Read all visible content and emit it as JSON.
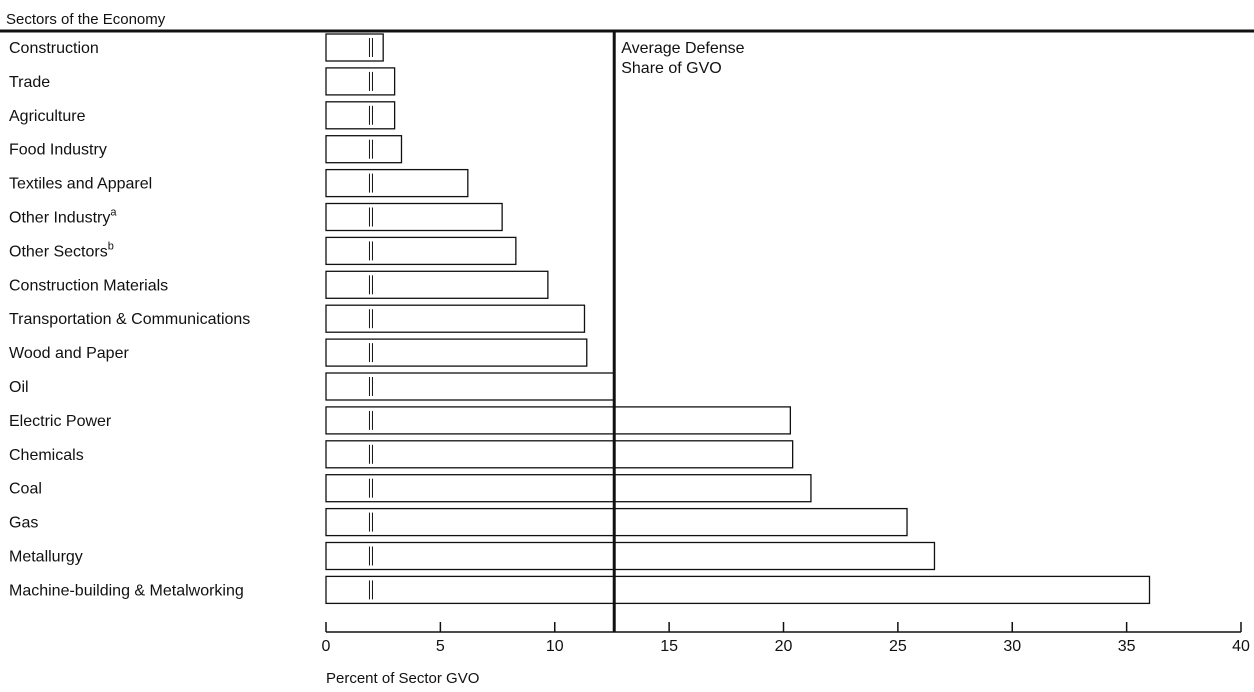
{
  "chart_data": {
    "type": "bar",
    "orientation": "horizontal",
    "header": "Sectors of the Economy",
    "xlabel": "Percent of Sector GVO",
    "xlim": [
      0,
      40
    ],
    "xticks": [
      0,
      5,
      10,
      15,
      20,
      25,
      30,
      35,
      40
    ],
    "grid": false,
    "categories": [
      {
        "label": "Construction",
        "sup": ""
      },
      {
        "label": "Trade",
        "sup": ""
      },
      {
        "label": "Agriculture",
        "sup": ""
      },
      {
        "label": "Food Industry",
        "sup": ""
      },
      {
        "label": "Textiles and Apparel",
        "sup": ""
      },
      {
        "label": "Other Industry",
        "sup": "a"
      },
      {
        "label": "Other Sectors",
        "sup": "b"
      },
      {
        "label": "Construction Materials",
        "sup": ""
      },
      {
        "label": "Transportation & Communications",
        "sup": ""
      },
      {
        "label": "Wood and Paper",
        "sup": ""
      },
      {
        "label": "Oil",
        "sup": ""
      },
      {
        "label": "Electric Power",
        "sup": ""
      },
      {
        "label": "Chemicals",
        "sup": ""
      },
      {
        "label": "Coal",
        "sup": ""
      },
      {
        "label": "Gas",
        "sup": ""
      },
      {
        "label": "Metallurgy",
        "sup": ""
      },
      {
        "label": "Machine-building & Metalworking",
        "sup": ""
      }
    ],
    "values": [
      2.5,
      3.0,
      3.0,
      3.3,
      6.2,
      7.7,
      8.3,
      9.7,
      11.3,
      11.4,
      12.6,
      20.3,
      20.4,
      21.2,
      25.4,
      26.6,
      36.0
    ],
    "inner_marker_value": 1.9,
    "reference_line": {
      "value": 12.6,
      "label_lines": [
        "Average Defense",
        "Share of GVO"
      ]
    },
    "colors": {
      "bar_fill": "#ffffff",
      "bar_stroke": "#111111",
      "reference_line": "#111111"
    }
  }
}
